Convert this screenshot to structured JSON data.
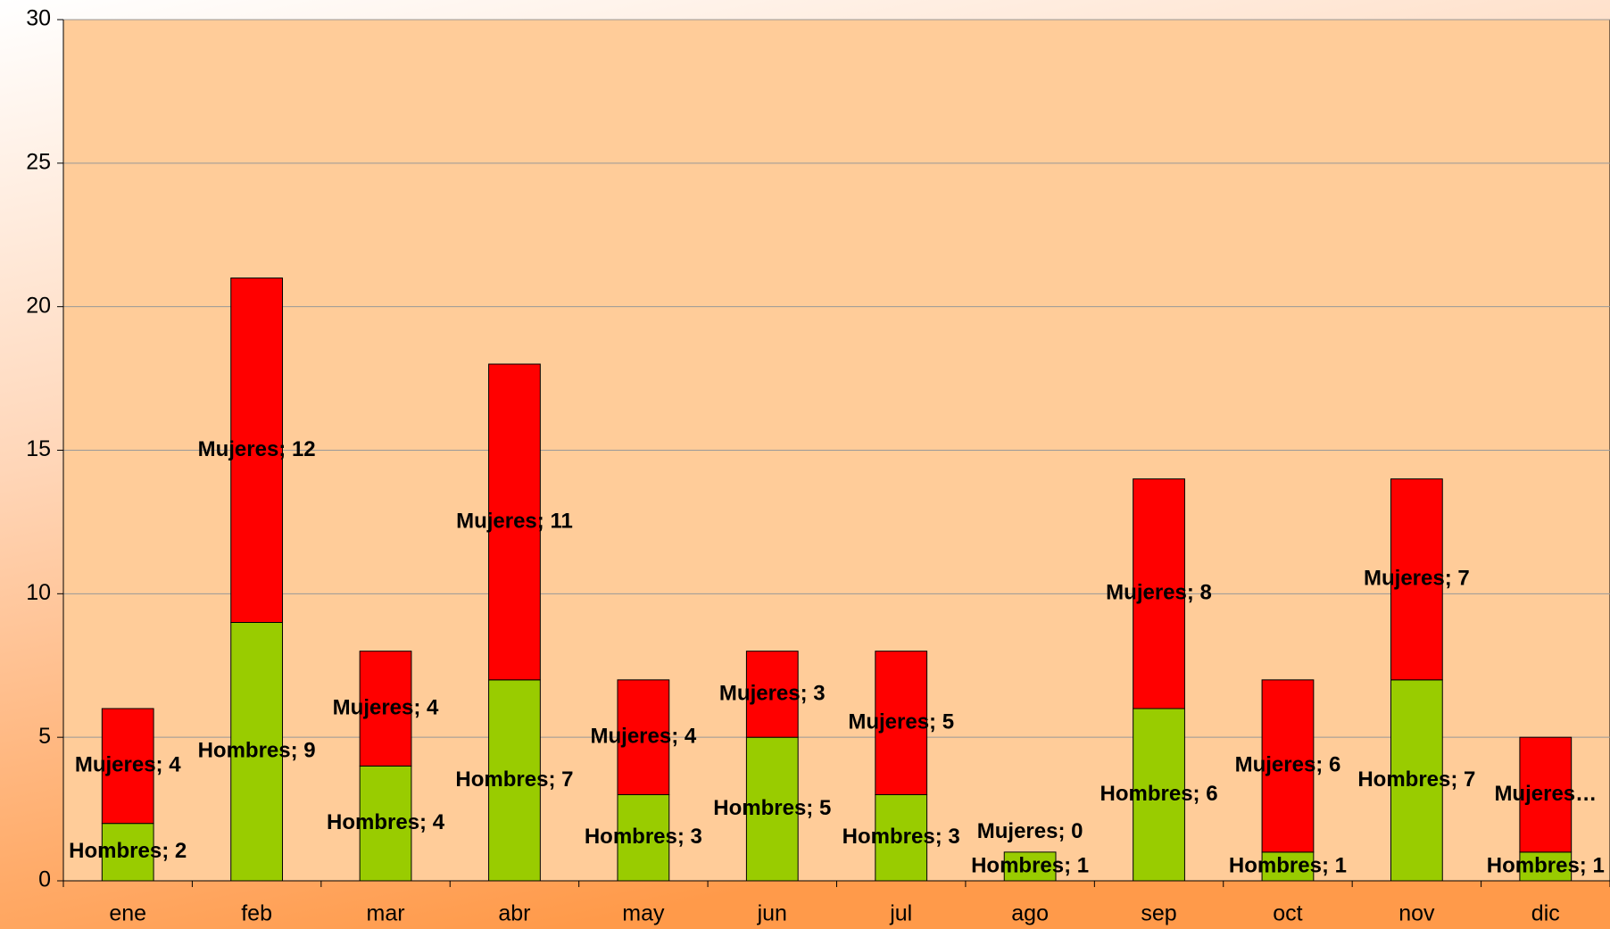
{
  "chart_data": {
    "type": "stacked_bar",
    "categories": [
      "ene",
      "feb",
      "mar",
      "abr",
      "may",
      "jun",
      "jul",
      "ago",
      "sep",
      "oct",
      "nov",
      "dic"
    ],
    "series": [
      {
        "name": "Hombres",
        "color": "#99cc00",
        "values": [
          2,
          9,
          4,
          7,
          3,
          5,
          3,
          1,
          6,
          1,
          7,
          1
        ],
        "value_labels": [
          "Hombres; 2",
          "Hombres; 9",
          "Hombres; 4",
          "Hombres; 7",
          "Hombres; 3",
          "Hombres; 5",
          "Hombres; 3",
          "Hombres; 1",
          "Hombres; 6",
          "Hombres; 1",
          "Hombres; 7",
          "Hombres; 1"
        ]
      },
      {
        "name": "Mujeres",
        "color": "#ff0000",
        "values": [
          4,
          12,
          4,
          11,
          4,
          3,
          5,
          0,
          8,
          6,
          7,
          4
        ],
        "value_labels": [
          "Mujeres; 4",
          "Mujeres; 12",
          "Mujeres; 4",
          "Mujeres; 11",
          "Mujeres; 4",
          "Mujeres; 3",
          "Mujeres; 5",
          "Mujeres; 0",
          "Mujeres; 8",
          "Mujeres; 6",
          "Mujeres; 7",
          "Mujeres…"
        ]
      }
    ],
    "ylim": [
      0,
      30
    ],
    "yticks": [
      0,
      5,
      10,
      15,
      20,
      25,
      30
    ],
    "grid": true
  }
}
